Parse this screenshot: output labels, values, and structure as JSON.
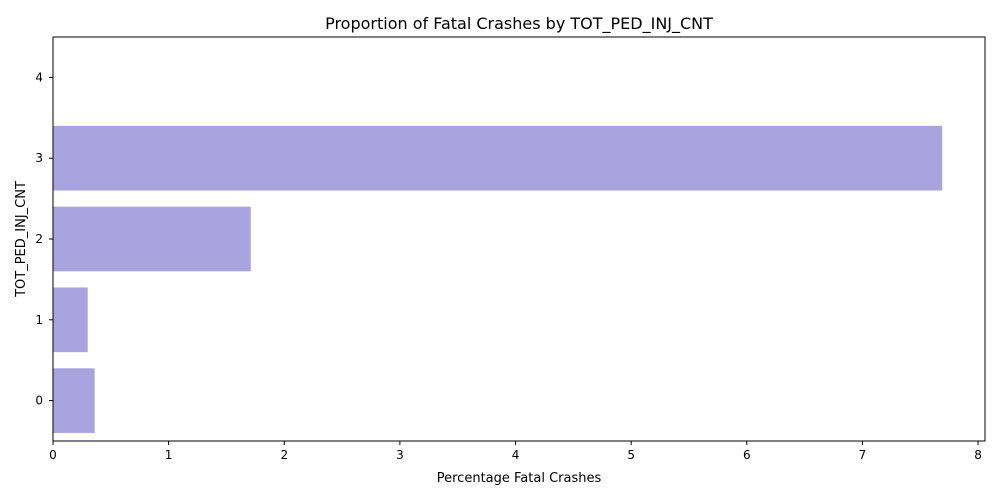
{
  "chart_data": {
    "type": "bar",
    "orientation": "horizontal",
    "title": "Proportion of Fatal Crashes by TOT_PED_INJ_CNT",
    "xlabel": "Percentage Fatal Crashes",
    "ylabel": "TOT_PED_INJ_CNT",
    "categories": [
      "0",
      "1",
      "2",
      "3",
      "4"
    ],
    "values": [
      0.36,
      0.3,
      1.71,
      7.69,
      0
    ],
    "xlim": [
      0,
      8.06
    ],
    "xticks": [
      "0",
      "1",
      "2",
      "3",
      "4",
      "5",
      "6",
      "7",
      "8"
    ],
    "grid": false,
    "bar_color": "#a9a4e0"
  }
}
